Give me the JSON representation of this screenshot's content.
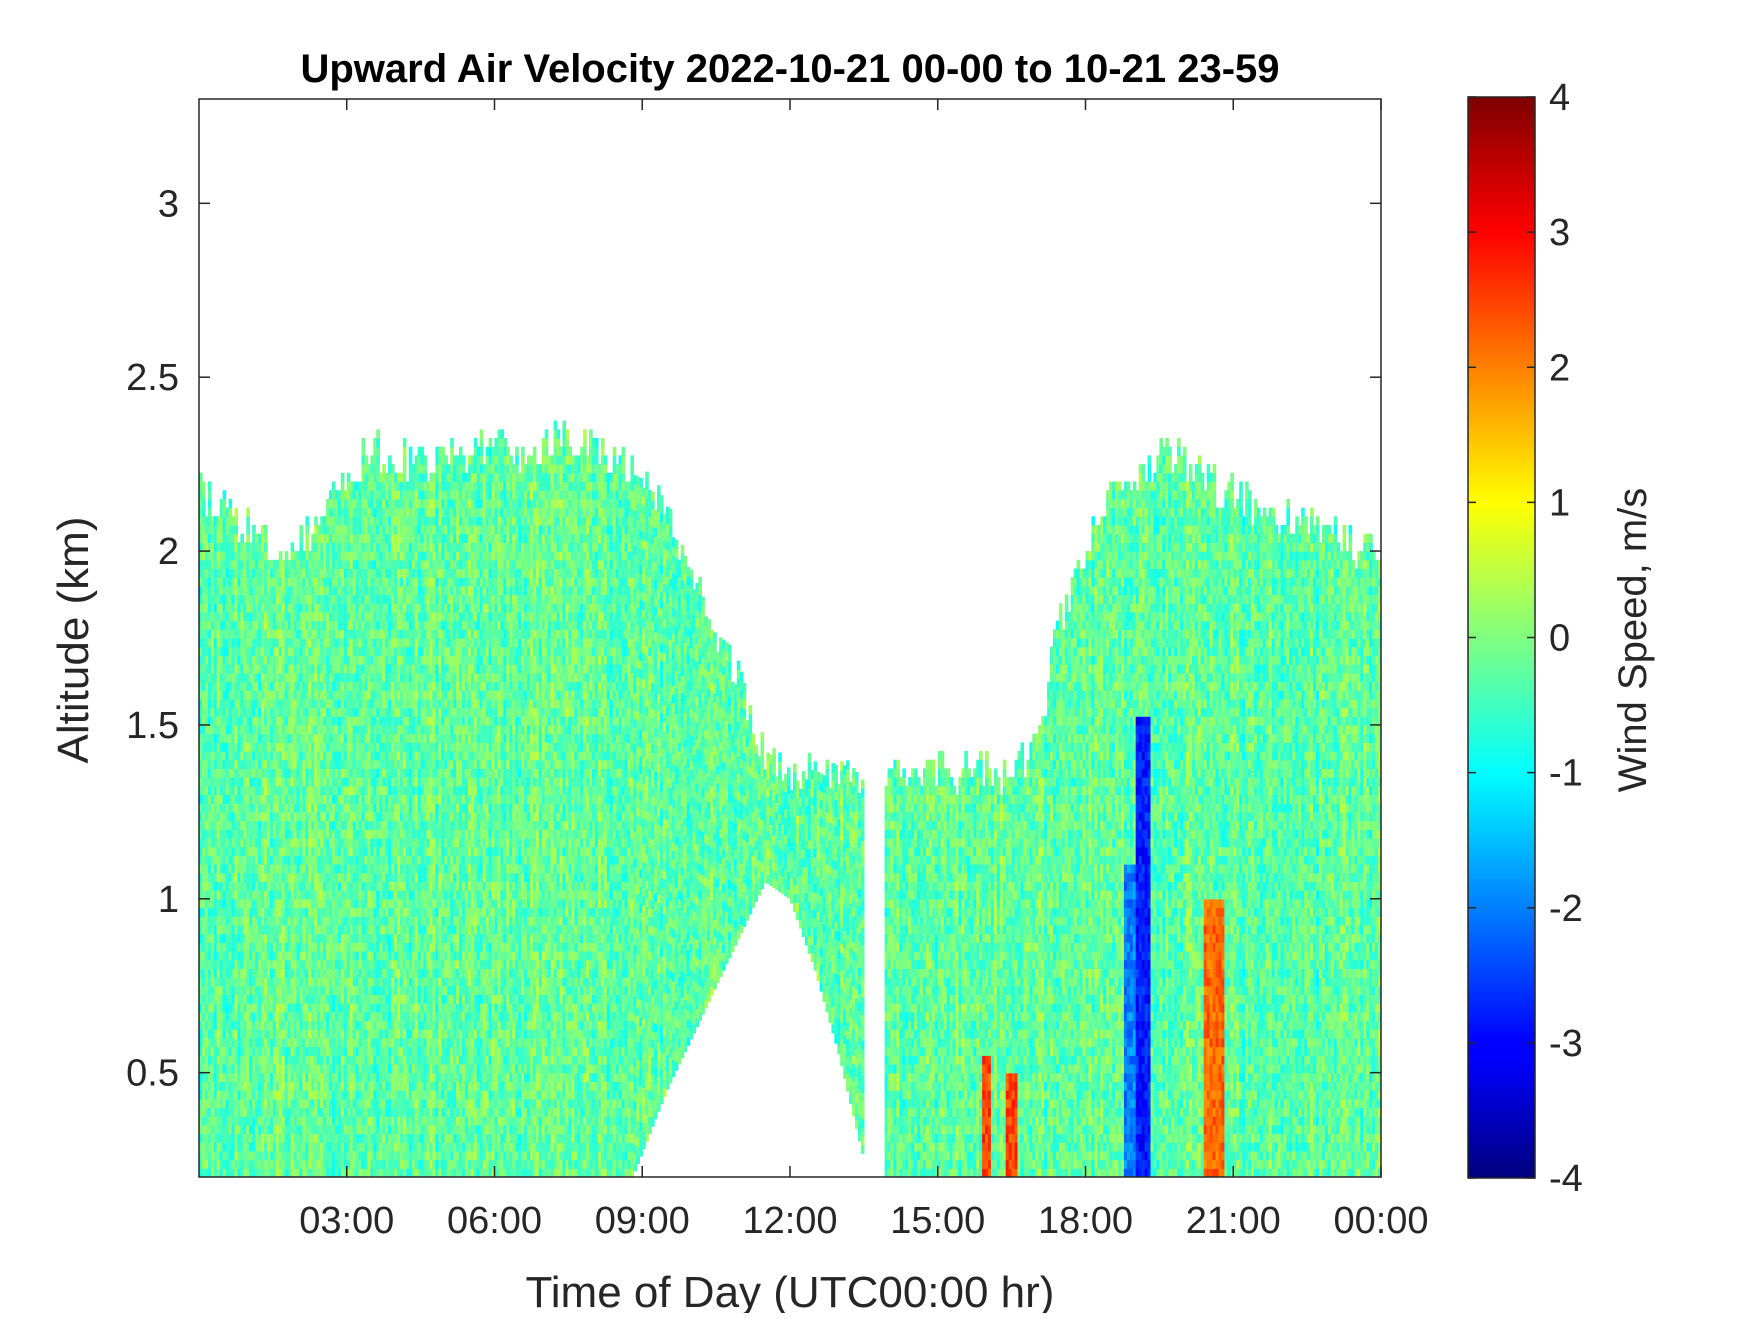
{
  "chart_data": {
    "type": "heatmap",
    "title": "Upward Air Velocity 2022-10-21 00-00 to 10-21 23-59",
    "xlabel": "Time of Day (UTC00:00 hr)",
    "ylabel": "Altitude (km)",
    "colorbar_label": "Wind Speed, m/s",
    "x_range_hours": [
      0,
      24
    ],
    "y_range_km": [
      0.2,
      3.3
    ],
    "x_ticks": [
      {
        "value": 3,
        "label": "03:00"
      },
      {
        "value": 6,
        "label": "06:00"
      },
      {
        "value": 9,
        "label": "09:00"
      },
      {
        "value": 12,
        "label": "12:00"
      },
      {
        "value": 15,
        "label": "15:00"
      },
      {
        "value": 18,
        "label": "18:00"
      },
      {
        "value": 21,
        "label": "21:00"
      },
      {
        "value": 24,
        "label": "00:00"
      }
    ],
    "y_ticks": [
      {
        "value": 0.5,
        "label": "0.5"
      },
      {
        "value": 1,
        "label": "1"
      },
      {
        "value": 1.5,
        "label": "1.5"
      },
      {
        "value": 2,
        "label": "2"
      },
      {
        "value": 2.5,
        "label": "2.5"
      },
      {
        "value": 3,
        "label": "3"
      }
    ],
    "colorbar": {
      "colormap": "jet",
      "range": [
        -4,
        4
      ],
      "ticks": [
        {
          "value": 4,
          "label": "4"
        },
        {
          "value": 3,
          "label": "3"
        },
        {
          "value": 2,
          "label": "2"
        },
        {
          "value": 1,
          "label": "1"
        },
        {
          "value": 0,
          "label": "0"
        },
        {
          "value": -1,
          "label": "-1"
        },
        {
          "value": -2,
          "label": "-2"
        },
        {
          "value": -3,
          "label": "-3"
        },
        {
          "value": -4,
          "label": "-4"
        }
      ]
    },
    "data_top_altitude_km": [
      {
        "hour": 0.0,
        "alt": 2.15
      },
      {
        "hour": 0.5,
        "alt": 2.1
      },
      {
        "hour": 1.0,
        "alt": 2.05
      },
      {
        "hour": 1.5,
        "alt": 2.0
      },
      {
        "hour": 2.0,
        "alt": 2.0
      },
      {
        "hour": 2.5,
        "alt": 2.1
      },
      {
        "hour": 3.0,
        "alt": 2.2
      },
      {
        "hour": 3.5,
        "alt": 2.3
      },
      {
        "hour": 4.0,
        "alt": 2.25
      },
      {
        "hour": 4.5,
        "alt": 2.25
      },
      {
        "hour": 5.0,
        "alt": 2.25
      },
      {
        "hour": 5.5,
        "alt": 2.25
      },
      {
        "hour": 6.0,
        "alt": 2.3
      },
      {
        "hour": 6.5,
        "alt": 2.25
      },
      {
        "hour": 7.0,
        "alt": 2.3
      },
      {
        "hour": 7.5,
        "alt": 2.3
      },
      {
        "hour": 8.0,
        "alt": 2.3
      },
      {
        "hour": 8.5,
        "alt": 2.25
      },
      {
        "hour": 9.0,
        "alt": 2.2
      },
      {
        "hour": 9.5,
        "alt": 2.1
      },
      {
        "hour": 10.0,
        "alt": 1.9
      },
      {
        "hour": 10.5,
        "alt": 1.75
      },
      {
        "hour": 11.0,
        "alt": 1.6
      },
      {
        "hour": 11.5,
        "alt": 1.4
      },
      {
        "hour": 12.0,
        "alt": 1.35
      },
      {
        "hour": 12.5,
        "alt": 1.35
      },
      {
        "hour": 13.0,
        "alt": 1.35
      },
      {
        "hour": 13.5,
        "alt": 1.35
      },
      {
        "hour": 13.7,
        "alt": 1.3
      },
      {
        "hour": 14.0,
        "alt": 1.35
      },
      {
        "hour": 14.5,
        "alt": 1.35
      },
      {
        "hour": 15.0,
        "alt": 1.35
      },
      {
        "hour": 15.5,
        "alt": 1.35
      },
      {
        "hour": 16.0,
        "alt": 1.35
      },
      {
        "hour": 16.5,
        "alt": 1.35
      },
      {
        "hour": 17.0,
        "alt": 1.45
      },
      {
        "hour": 17.5,
        "alt": 1.8
      },
      {
        "hour": 18.0,
        "alt": 2.0
      },
      {
        "hour": 18.5,
        "alt": 2.15
      },
      {
        "hour": 19.0,
        "alt": 2.2
      },
      {
        "hour": 19.5,
        "alt": 2.25
      },
      {
        "hour": 20.0,
        "alt": 2.25
      },
      {
        "hour": 20.5,
        "alt": 2.2
      },
      {
        "hour": 21.0,
        "alt": 2.15
      },
      {
        "hour": 21.5,
        "alt": 2.1
      },
      {
        "hour": 22.0,
        "alt": 2.1
      },
      {
        "hour": 22.5,
        "alt": 2.05
      },
      {
        "hour": 23.0,
        "alt": 2.05
      },
      {
        "hour": 23.5,
        "alt": 2.0
      },
      {
        "hour": 24.0,
        "alt": 2.0
      }
    ],
    "data_bottom_altitude_km": [
      {
        "hour": 0.0,
        "alt": 0.2
      },
      {
        "hour": 8.8,
        "alt": 0.2
      },
      {
        "hour": 9.5,
        "alt": 0.45
      },
      {
        "hour": 10.5,
        "alt": 0.75
      },
      {
        "hour": 11.5,
        "alt": 1.05
      },
      {
        "hour": 12.0,
        "alt": 1.0
      },
      {
        "hour": 12.5,
        "alt": 0.8
      },
      {
        "hour": 13.0,
        "alt": 0.55
      },
      {
        "hour": 13.5,
        "alt": 0.25
      },
      {
        "hour": 13.7,
        "alt": 0.2
      },
      {
        "hour": 24.0,
        "alt": 0.2
      }
    ],
    "gap_hours": [
      13.5,
      13.9
    ],
    "gap_note_dummy": null,
    "notable_features": [
      {
        "hour_start": 15.9,
        "hour_end": 16.1,
        "alt_top": 0.55,
        "value": 2.5
      },
      {
        "hour_start": 16.4,
        "hour_end": 16.6,
        "alt_top": 0.5,
        "value": 2.5
      },
      {
        "hour_start": 20.4,
        "hour_end": 20.8,
        "alt_top": 1.0,
        "value": 2.2
      },
      {
        "hour_start": 19.0,
        "hour_end": 19.3,
        "alt_top": 1.5,
        "value": -2.8
      },
      {
        "hour_start": 18.8,
        "hour_end": 19.0,
        "alt_top": 1.1,
        "value": -2.0
      }
    ]
  }
}
